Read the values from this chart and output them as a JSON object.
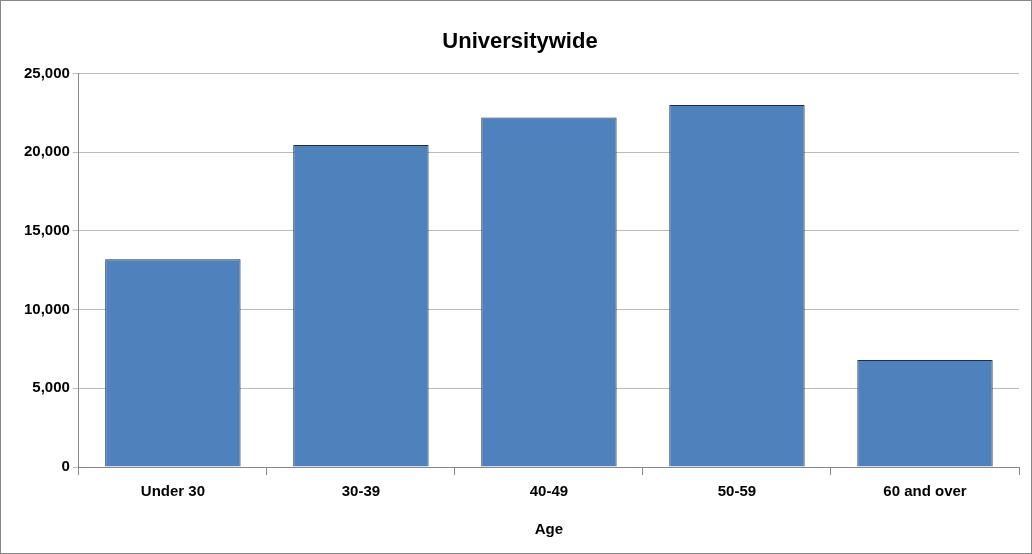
{
  "chart_data": {
    "type": "bar",
    "title": "Universitywide",
    "xlabel": "Age",
    "categories": [
      "Under 30",
      "30-39",
      "40-49",
      "50-59",
      "60 and over"
    ],
    "values": [
      13200,
      20450,
      22200,
      23000,
      6800
    ],
    "color": "#4f81bd",
    "ylim": [
      0,
      25000
    ],
    "yticks": [
      0,
      {
        "value": 5000,
        "label": "5,000"
      },
      {
        "value": 10000,
        "label": "10,000"
      },
      {
        "value": 15000,
        "label": "15,000"
      },
      {
        "value": 20000,
        "label": "20,000"
      },
      {
        "value": 25000,
        "label": "25,000"
      }
    ],
    "grid": "y"
  }
}
